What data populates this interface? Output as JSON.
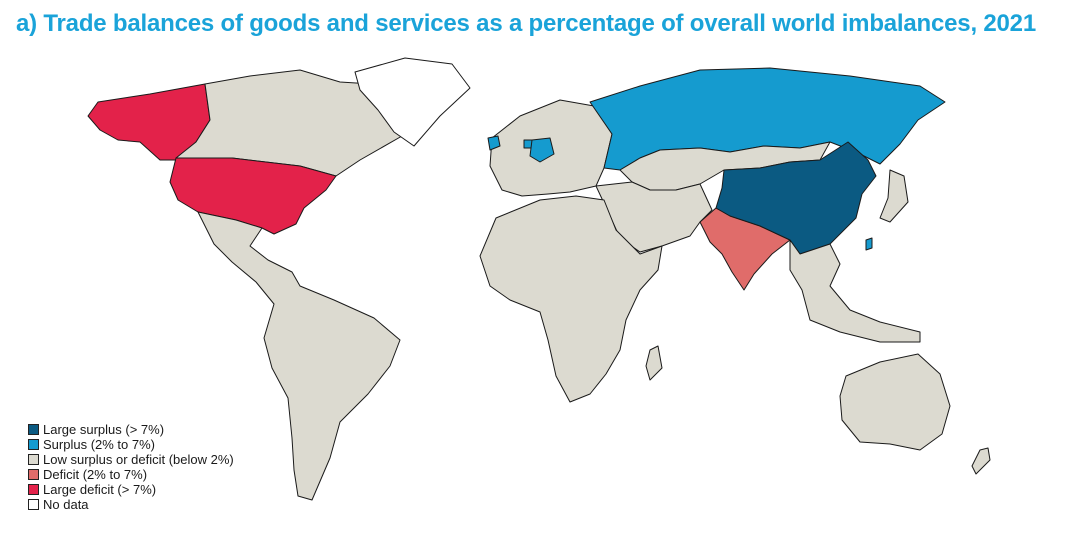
{
  "title": "a)  Trade balances of goods and services as a percentage of overall world imbalances, 2021",
  "colors": {
    "large_surplus": "#0b5a82",
    "surplus": "#159bcf",
    "low": "#dcdad0",
    "deficit": "#e06c6a",
    "large_deficit": "#e3224a",
    "no_data": "#ffffff"
  },
  "legend": [
    {
      "key": "large_surplus",
      "label": "Large surplus (> 7%)"
    },
    {
      "key": "surplus",
      "label": "Surplus (2% to 7%)"
    },
    {
      "key": "low",
      "label": "Low surplus or deficit (below 2%)"
    },
    {
      "key": "deficit",
      "label": "Deficit (2% to 7%)"
    },
    {
      "key": "large_deficit",
      "label": "Large deficit (> 7%)"
    },
    {
      "key": "no_data",
      "label": "No data"
    }
  ],
  "regions": {
    "alaska": "large_deficit",
    "united_states": "large_deficit",
    "canada": "low",
    "greenland": "no_data",
    "latin_america": "low",
    "europe": "low",
    "russia": "surplus",
    "germany": "surplus",
    "netherlands": "surplus",
    "ireland": "surplus",
    "taiwan": "surplus",
    "china": "large_surplus",
    "india": "deficit",
    "africa": "low",
    "middle_east": "low",
    "central_asia": "low",
    "southeast_asia": "low",
    "australia": "low"
  }
}
